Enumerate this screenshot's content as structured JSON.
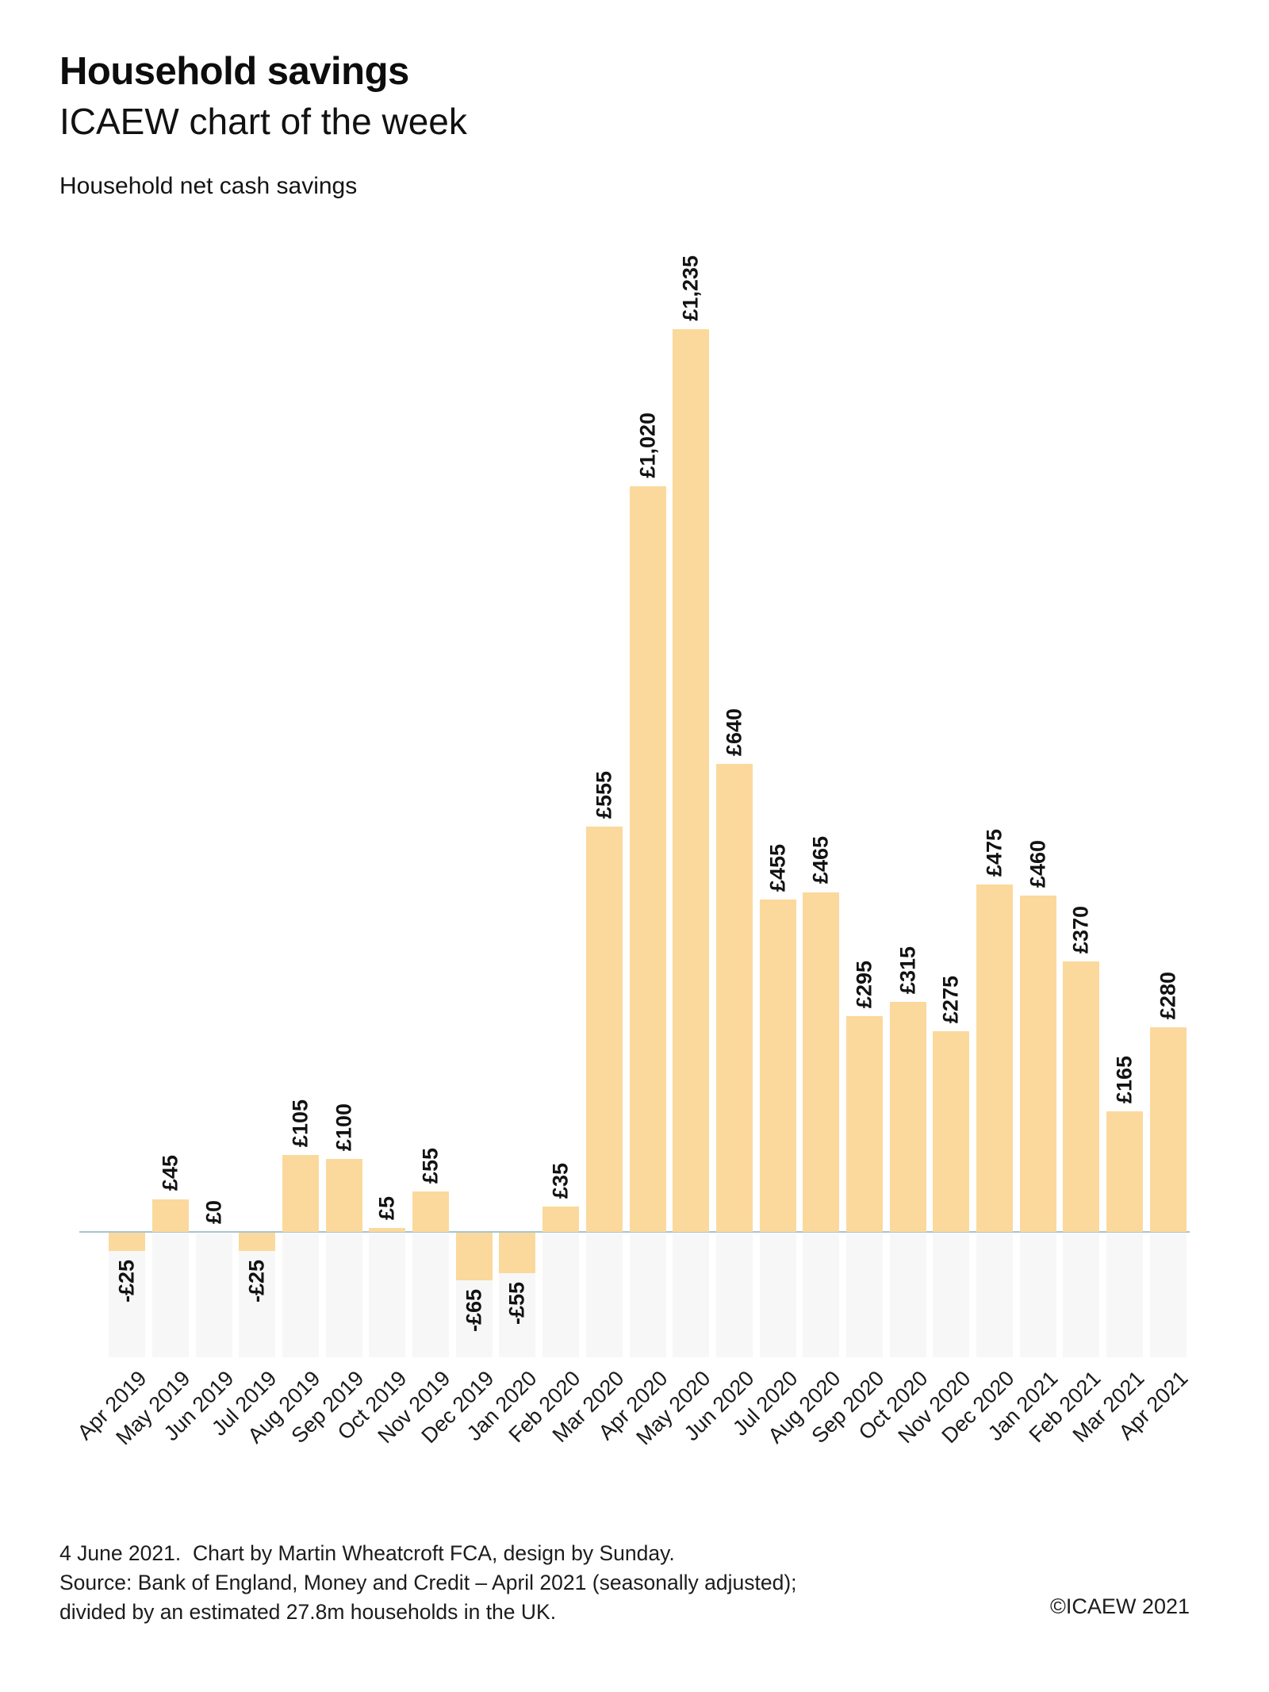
{
  "header": {
    "title": "Household savings",
    "subtitle": "ICAEW chart of the week"
  },
  "chart_data": {
    "type": "bar",
    "title": "Household net cash savings",
    "categories": [
      "Apr 2019",
      "May 2019",
      "Jun 2019",
      "Jul 2019",
      "Aug 2019",
      "Sep 2019",
      "Oct 2019",
      "Nov 2019",
      "Dec 2019",
      "Jan 2020",
      "Feb 2020",
      "Mar 2020",
      "Apr 2020",
      "May 2020",
      "Jun 2020",
      "Jul 2020",
      "Aug 2020",
      "Sep 2020",
      "Oct 2020",
      "Nov 2020",
      "Dec 2020",
      "Jan 2021",
      "Feb 2021",
      "Mar 2021",
      "Apr 2021"
    ],
    "values": [
      -25,
      45,
      0,
      -25,
      105,
      100,
      5,
      55,
      -65,
      -55,
      35,
      555,
      1020,
      1235,
      640,
      455,
      465,
      295,
      315,
      275,
      475,
      460,
      370,
      165,
      280
    ],
    "value_labels": [
      "-£25",
      "£45",
      "£0",
      "-£25",
      "£105",
      "£100",
      "£5",
      "£55",
      "-£65",
      "-£55",
      "£35",
      "£555",
      "£1,020",
      "£1,235",
      "£640",
      "£455",
      "£465",
      "£295",
      "£315",
      "£275",
      "£475",
      "£460",
      "£370",
      "£165",
      "£280"
    ],
    "xlabel": "",
    "ylabel": "",
    "ylim": [
      -170,
      1300
    ],
    "grid": false,
    "legend": "none",
    "x_tick_rotation": 45,
    "value_label_rotation": 90,
    "bar_color": "#FBD99C",
    "track_color": "#F7F7F7",
    "baseline_color": "#A7C5CE"
  },
  "footer": {
    "line1": "4 June 2021.  Chart by Martin Wheatcroft FCA, design by Sunday.",
    "line2": "Source: Bank of England, Money and Credit – April 2021 (seasonally adjusted);",
    "line3": "divided by an estimated 27.8m households in the UK.",
    "copyright": "©ICAEW 2021"
  }
}
